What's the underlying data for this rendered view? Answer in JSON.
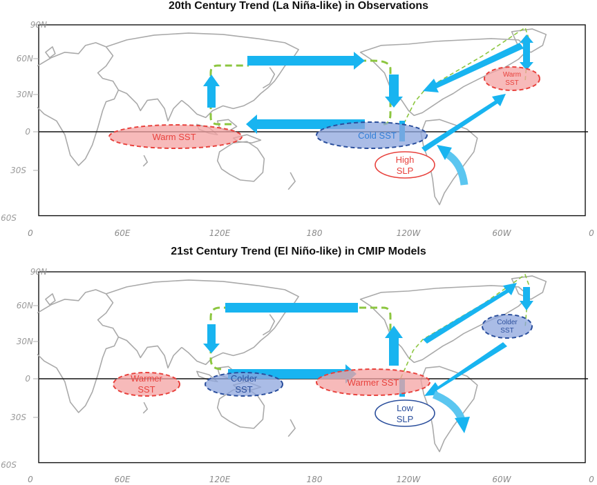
{
  "panels": [
    {
      "title": "20th Century Trend (La Niña-like) in Observations",
      "labels": {
        "warm_io": "Warm SST",
        "cold_ep": "Cold SST",
        "slp_1": "High",
        "slp_2": "SLP",
        "warm_atl_1": "Warm",
        "warm_atl_2": "SST"
      }
    },
    {
      "title": "21st Century Trend (El Niño-like) in CMIP Models",
      "labels": {
        "warm_io_1": "Warmer",
        "warm_io_2": "SST",
        "cold_wp_1": "Colder",
        "cold_wp_2": "SST",
        "warm_ep": "Warmer SST",
        "slp_1": "Low",
        "slp_2": "SLP",
        "cold_atl_1": "Colder",
        "cold_atl_2": "SST"
      }
    }
  ],
  "axes": {
    "lat_ticks": [
      "90N",
      "60N",
      "30N",
      "0",
      "30S",
      "60S"
    ],
    "lon_ticks": [
      "0",
      "60E",
      "120E",
      "180",
      "120W",
      "60W",
      "0"
    ]
  },
  "colors": {
    "warm_fill": "#f4a3a3",
    "warm_edge": "#e8413c",
    "cold_fill": "#8ea6dd",
    "cold_edge": "#2a4e9c",
    "arrow": "#18b4f0",
    "walker_cell": "#8cc63f",
    "coastline": "#a9a9a9"
  }
}
